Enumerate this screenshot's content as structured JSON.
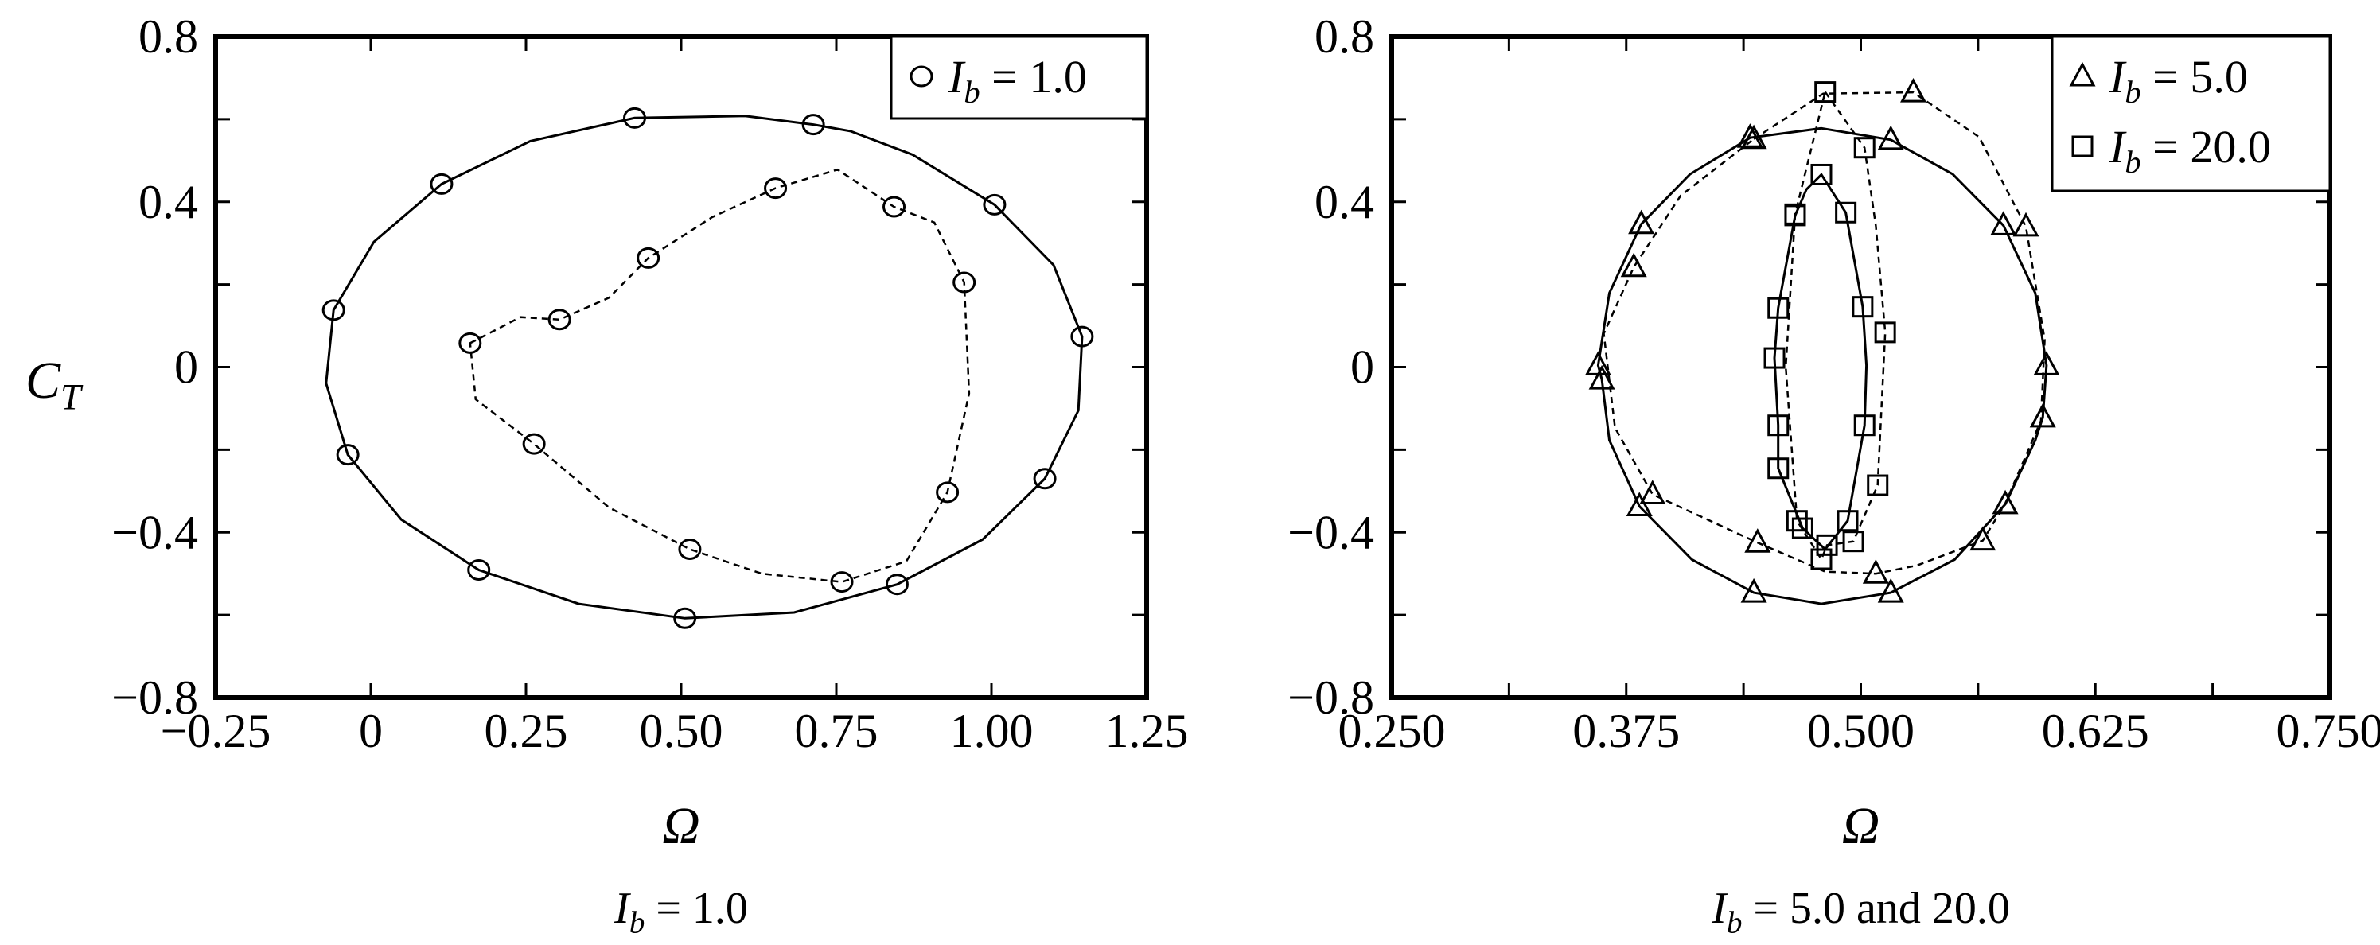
{
  "chart_data": [
    {
      "type": "line",
      "caption": {
        "var": "I",
        "sub": "b",
        "rest": " = 1.0"
      },
      "xlabel": "Ω",
      "ylabel": {
        "var": "C",
        "sub": "T"
      },
      "xlim": [
        -0.25,
        1.25
      ],
      "ylim": [
        -0.8,
        0.8
      ],
      "xticks": [
        -0.25,
        0,
        0.25,
        0.5,
        0.75,
        1.0,
        1.25
      ],
      "xtick_labels": [
        "−0.25",
        "0",
        "0.25",
        "0.50",
        "0.75",
        "1.00",
        "1.25"
      ],
      "xminor": [],
      "yticks": [
        -0.8,
        -0.4,
        0,
        0.4,
        0.8
      ],
      "ytick_labels": [
        "−0.8",
        "−0.4",
        "0",
        "0.4",
        "0.8"
      ],
      "yminor": [
        -0.6,
        -0.2,
        0.2,
        0.6
      ],
      "legend_position": "top-right",
      "legend": [
        {
          "marker": "circle",
          "var": "I",
          "sub": "b",
          "rest": " = 1.0"
        }
      ],
      "series": [
        {
          "name": "Ib=1.0 solid",
          "marker": "circle",
          "dash": false,
          "closed": true,
          "points": [
            [
              0.425,
              0.603,
              1
            ],
            [
              0.603,
              0.608,
              0
            ],
            [
              0.713,
              0.587,
              1
            ],
            [
              0.773,
              0.571,
              0
            ],
            [
              0.873,
              0.514,
              0
            ],
            [
              1.005,
              0.393,
              1
            ],
            [
              1.1,
              0.247,
              0
            ],
            [
              1.146,
              0.074,
              1
            ],
            [
              1.14,
              -0.105,
              0
            ],
            [
              1.086,
              -0.27,
              1
            ],
            [
              0.986,
              -0.417,
              0
            ],
            [
              0.848,
              -0.526,
              1
            ],
            [
              0.682,
              -0.594,
              0
            ],
            [
              0.506,
              -0.608,
              1
            ],
            [
              0.335,
              -0.573,
              0
            ],
            [
              0.174,
              -0.491,
              1
            ],
            [
              0.049,
              -0.369,
              0
            ],
            [
              -0.037,
              -0.212,
              1
            ],
            [
              -0.072,
              -0.039,
              0
            ],
            [
              -0.06,
              0.138,
              1
            ],
            [
              0.005,
              0.303,
              0
            ],
            [
              0.114,
              0.443,
              1
            ],
            [
              0.257,
              0.547,
              0
            ]
          ]
        },
        {
          "name": "Ib=1.0 dashed",
          "marker": "circle",
          "dash": true,
          "closed": true,
          "points": [
            [
              0.16,
              0.058,
              1
            ],
            [
              0.241,
              0.121,
              0
            ],
            [
              0.304,
              0.115,
              1
            ],
            [
              0.384,
              0.168,
              0
            ],
            [
              0.447,
              0.264,
              1
            ],
            [
              0.55,
              0.363,
              0
            ],
            [
              0.652,
              0.433,
              1
            ],
            [
              0.752,
              0.478,
              0
            ],
            [
              0.843,
              0.388,
              1
            ],
            [
              0.908,
              0.35,
              0
            ],
            [
              0.956,
              0.205,
              1
            ],
            [
              0.964,
              -0.064,
              0
            ],
            [
              0.929,
              -0.303,
              1
            ],
            [
              0.863,
              -0.47,
              0
            ],
            [
              0.759,
              -0.52,
              1
            ],
            [
              0.63,
              -0.5,
              0
            ],
            [
              0.514,
              -0.441,
              1
            ],
            [
              0.384,
              -0.34,
              0
            ],
            [
              0.263,
              -0.186,
              1
            ],
            [
              0.169,
              -0.078,
              0
            ]
          ]
        }
      ]
    },
    {
      "type": "line",
      "caption": {
        "var": "I",
        "sub": "b",
        "rest": " = 5.0 and 20.0"
      },
      "xlabel": "Ω",
      "xlim": [
        0.25,
        0.75
      ],
      "ylim": [
        -0.8,
        0.8
      ],
      "xticks": [
        0.25,
        0.375,
        0.5,
        0.625,
        0.75
      ],
      "xtick_labels": [
        "0.250",
        "0.375",
        "0.500",
        "0.625",
        "0.750"
      ],
      "xminor": [
        0.3125,
        0.4375,
        0.5625,
        0.6875
      ],
      "yticks": [
        -0.8,
        -0.4,
        0,
        0.4,
        0.8
      ],
      "ytick_labels": [
        "−0.8",
        "−0.4",
        "0",
        "0.4",
        "0.8"
      ],
      "yminor": [
        -0.6,
        -0.2,
        0.2,
        0.6
      ],
      "legend_position": "top-right",
      "legend": [
        {
          "marker": "triangle",
          "var": "I",
          "sub": "b",
          "rest": " = 5.0"
        },
        {
          "marker": "square",
          "var": "I",
          "sub": "b",
          "rest": " = 20.0"
        }
      ],
      "series": [
        {
          "name": "Ib=5.0 solid",
          "marker": "triangle",
          "dash": false,
          "closed": true,
          "points": [
            [
              0.479,
              0.578,
              0
            ],
            [
              0.516,
              0.55,
              1
            ],
            [
              0.549,
              0.467,
              0
            ],
            [
              0.576,
              0.343,
              1
            ],
            [
              0.593,
              0.179,
              0
            ],
            [
              0.599,
              0.004,
              1
            ],
            [
              0.597,
              -0.122,
              1
            ],
            [
              0.593,
              -0.177,
              0
            ],
            [
              0.577,
              -0.332,
              1
            ],
            [
              0.55,
              -0.466,
              0
            ],
            [
              0.516,
              -0.546,
              1
            ],
            [
              0.479,
              -0.573,
              0
            ],
            [
              0.443,
              -0.546,
              1
            ],
            [
              0.41,
              -0.466,
              0
            ],
            [
              0.382,
              -0.337,
              1
            ],
            [
              0.366,
              -0.177,
              0
            ],
            [
              0.362,
              -0.03,
              1
            ],
            [
              0.36,
              0.004,
              1
            ],
            [
              0.366,
              0.179,
              0
            ],
            [
              0.383,
              0.346,
              1
            ],
            [
              0.409,
              0.467,
              0
            ],
            [
              0.441,
              0.555,
              1
            ]
          ]
        },
        {
          "name": "Ib=5.0 dashed",
          "marker": "triangle",
          "dash": true,
          "closed": true,
          "points": [
            [
              0.443,
              0.552,
              1
            ],
            [
              0.48,
              0.662,
              0
            ],
            [
              0.528,
              0.665,
              1
            ],
            [
              0.563,
              0.557,
              0
            ],
            [
              0.588,
              0.34,
              1
            ],
            [
              0.598,
              0.066,
              0
            ],
            [
              0.596,
              -0.13,
              0
            ],
            [
              0.577,
              -0.33,
              0
            ],
            [
              0.565,
              -0.42,
              1
            ],
            [
              0.53,
              -0.48,
              0
            ],
            [
              0.508,
              -0.5,
              1
            ],
            [
              0.481,
              -0.495,
              0
            ],
            [
              0.445,
              -0.425,
              1
            ],
            [
              0.389,
              -0.308,
              1
            ],
            [
              0.369,
              -0.147,
              0
            ],
            [
              0.363,
              0.081,
              0
            ],
            [
              0.379,
              0.242,
              1
            ],
            [
              0.404,
              0.415,
              0
            ]
          ]
        },
        {
          "name": "Ib=20.0 solid",
          "marker": "square",
          "dash": false,
          "closed": true,
          "points": [
            [
              0.479,
              0.466,
              1
            ],
            [
              0.492,
              0.374,
              1
            ],
            [
              0.501,
              0.146,
              1
            ],
            [
              0.503,
              0.004,
              0
            ],
            [
              0.502,
              -0.141,
              1
            ],
            [
              0.493,
              -0.372,
              1
            ],
            [
              0.481,
              -0.441,
              0
            ],
            [
              0.469,
              -0.39,
              1
            ],
            [
              0.456,
              -0.245,
              1
            ],
            [
              0.456,
              -0.141,
              1
            ],
            [
              0.454,
              0.022,
              1
            ],
            [
              0.456,
              0.143,
              1
            ],
            [
              0.465,
              0.367,
              1
            ],
            [
              0.471,
              0.43,
              0
            ]
          ]
        },
        {
          "name": "Ib=20.0 dashed",
          "marker": "square",
          "dash": true,
          "closed": true,
          "points": [
            [
              0.481,
              0.666,
              1
            ],
            [
              0.502,
              0.531,
              1
            ],
            [
              0.508,
              0.342,
              0
            ],
            [
              0.513,
              0.084,
              1
            ],
            [
              0.509,
              -0.286,
              1
            ],
            [
              0.496,
              -0.422,
              1
            ],
            [
              0.482,
              -0.431,
              1
            ],
            [
              0.479,
              -0.465,
              1
            ],
            [
              0.466,
              -0.372,
              1
            ],
            [
              0.46,
              0.0,
              0
            ],
            [
              0.465,
              0.37,
              1
            ]
          ]
        }
      ]
    }
  ]
}
